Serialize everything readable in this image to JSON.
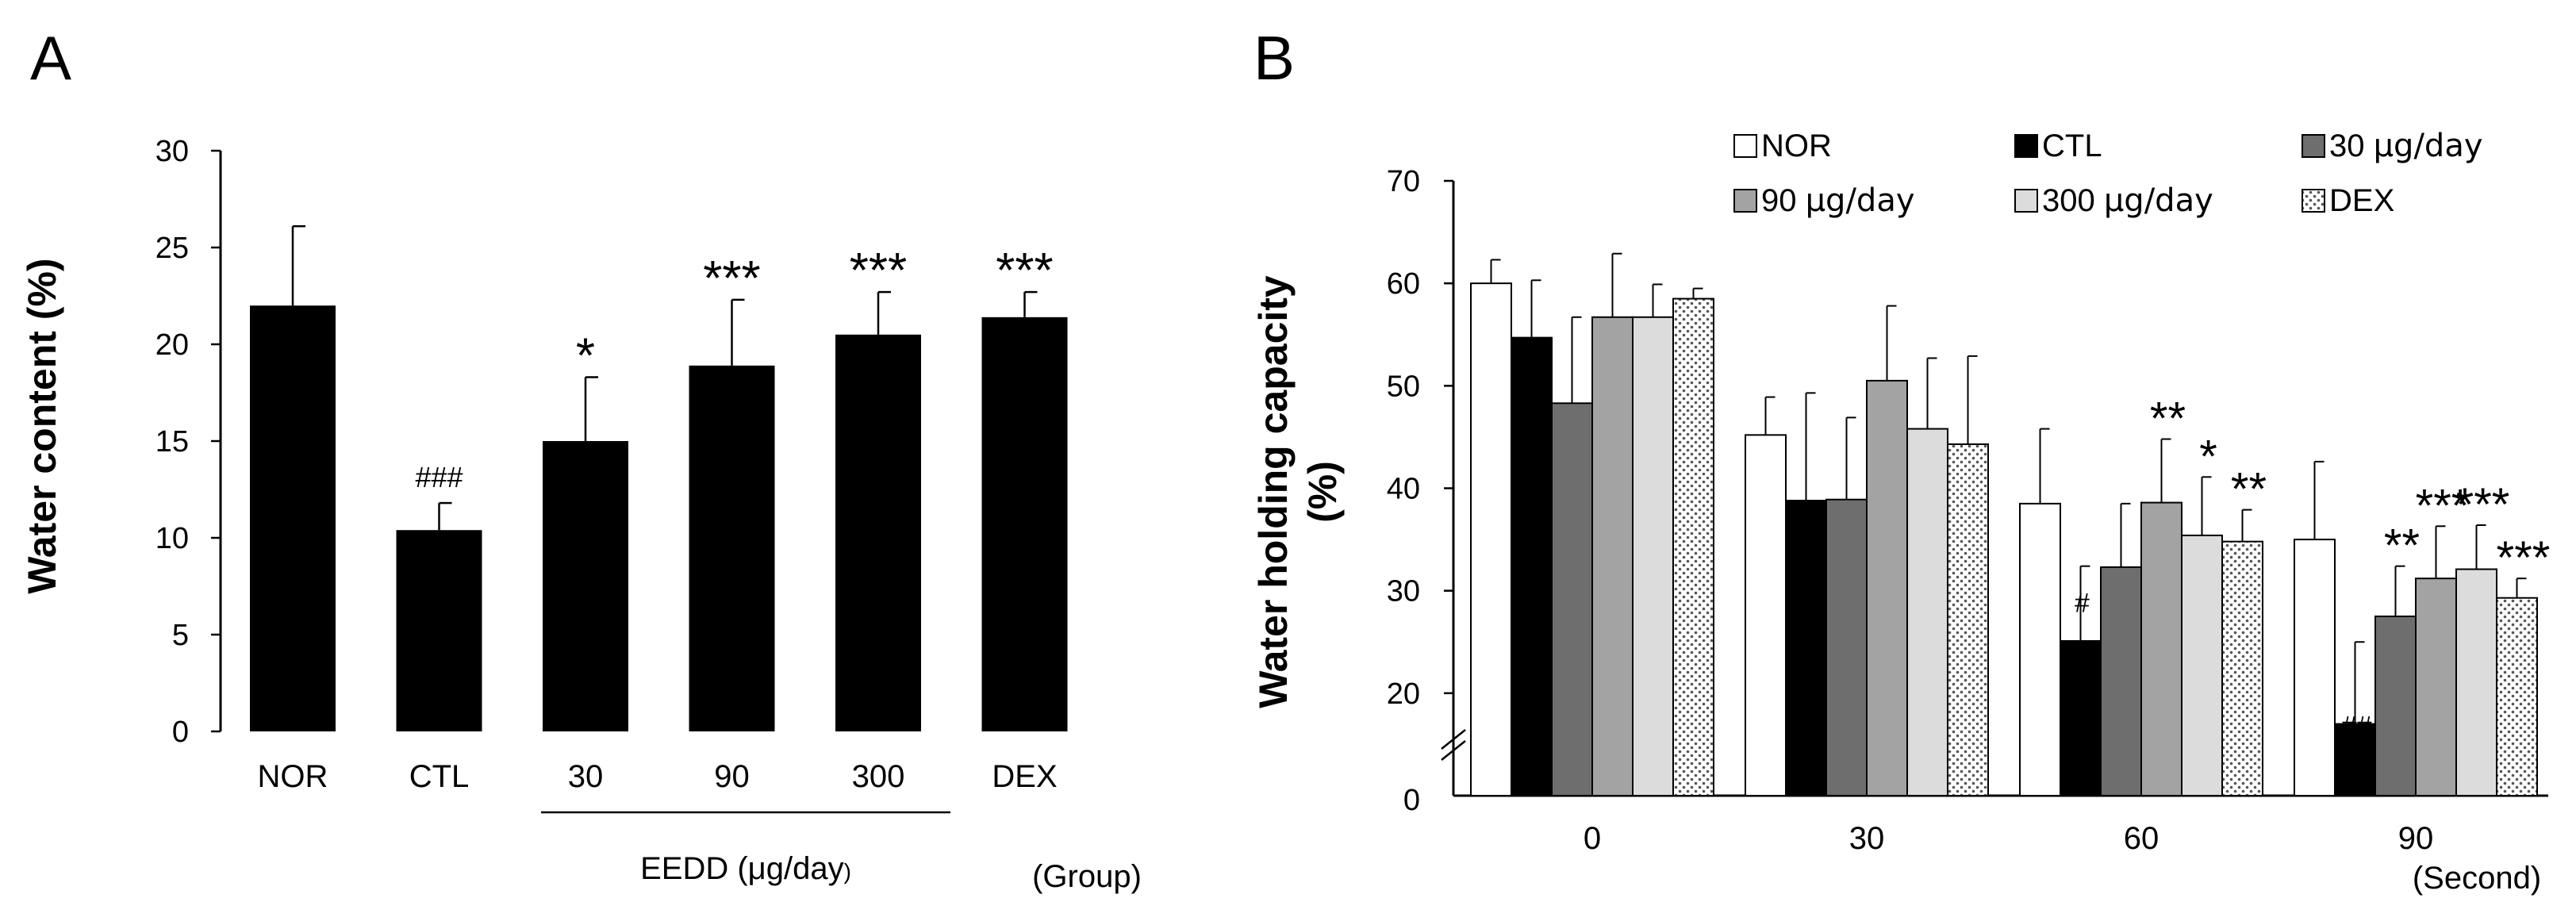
{
  "chart_data": [
    {
      "panel": "A",
      "type": "bar",
      "ylabel": "Water content (%)",
      "ylim": [
        0,
        30
      ],
      "yticks": [
        "0",
        "5",
        "10",
        "15",
        "20",
        "25",
        "30"
      ],
      "categories": [
        "NOR",
        "CTL",
        "30",
        "90",
        "300",
        "DEX"
      ],
      "values": [
        22.0,
        10.4,
        15.0,
        18.9,
        20.5,
        21.4
      ],
      "errors": [
        4.1,
        1.4,
        3.3,
        3.4,
        2.2,
        1.3
      ],
      "annotations": [
        "",
        "###",
        "*",
        "***",
        "***",
        "***"
      ],
      "group_label": "EEDD (μg/day)",
      "group_label_prefix": "EEDD (",
      "group_label_mu": "μg/day",
      "group_label_suffix": ")",
      "xlabel": "(Group)",
      "bar_color": "#000000"
    },
    {
      "panel": "B",
      "type": "bar",
      "ylabel_line1": "Water holding capacity",
      "ylabel_line2": "(%)",
      "ylim": [
        10,
        70
      ],
      "axis_break": true,
      "yticks": [
        "0",
        "20",
        "30",
        "40",
        "50",
        "60",
        "70"
      ],
      "categories": [
        "0",
        "30",
        "60",
        "90"
      ],
      "xlabel": "(Second)",
      "series": [
        {
          "name": "NOR",
          "fill": "#ffffff",
          "pattern": false,
          "values": [
            60.0,
            45.2,
            38.5,
            35.0
          ],
          "errors": [
            2.3,
            3.7,
            7.3,
            7.6
          ]
        },
        {
          "name": "CTL",
          "fill": "#000000",
          "pattern": false,
          "values": [
            54.7,
            38.8,
            25.1,
            17.0
          ],
          "errors": [
            5.6,
            10.5,
            7.3,
            8.0
          ]
        },
        {
          "name": "30 μg/day",
          "fill": "#6e6e6e",
          "pattern": false,
          "values": [
            48.3,
            38.9,
            32.3,
            27.5
          ],
          "errors": [
            8.4,
            8.0,
            6.2,
            4.9
          ]
        },
        {
          "name": "90 μg/day",
          "fill": "#a3a3a3",
          "pattern": false,
          "values": [
            56.7,
            50.5,
            38.6,
            31.2
          ],
          "errors": [
            6.2,
            7.3,
            6.2,
            5.1
          ]
        },
        {
          "name": "300 μg/day",
          "fill": "#dcdcdc",
          "pattern": false,
          "values": [
            56.7,
            45.8,
            35.4,
            32.1
          ],
          "errors": [
            3.2,
            6.9,
            5.7,
            4.3
          ]
        },
        {
          "name": "DEX",
          "fill": "#ffffff",
          "pattern": true,
          "values": [
            58.5,
            44.3,
            34.8,
            29.3
          ],
          "errors": [
            1.0,
            8.6,
            3.1,
            1.9
          ]
        }
      ],
      "annotations": [
        [
          "",
          "",
          "",
          "",
          "",
          ""
        ],
        [
          "",
          "",
          "",
          "",
          "",
          ""
        ],
        [
          "",
          "#",
          "",
          "**",
          "*",
          "**"
        ],
        [
          "",
          "##",
          "**",
          "***",
          "***",
          "***"
        ]
      ],
      "legend_position": "top-right"
    }
  ],
  "labels": {
    "panel_a": "A",
    "panel_b": "B"
  }
}
